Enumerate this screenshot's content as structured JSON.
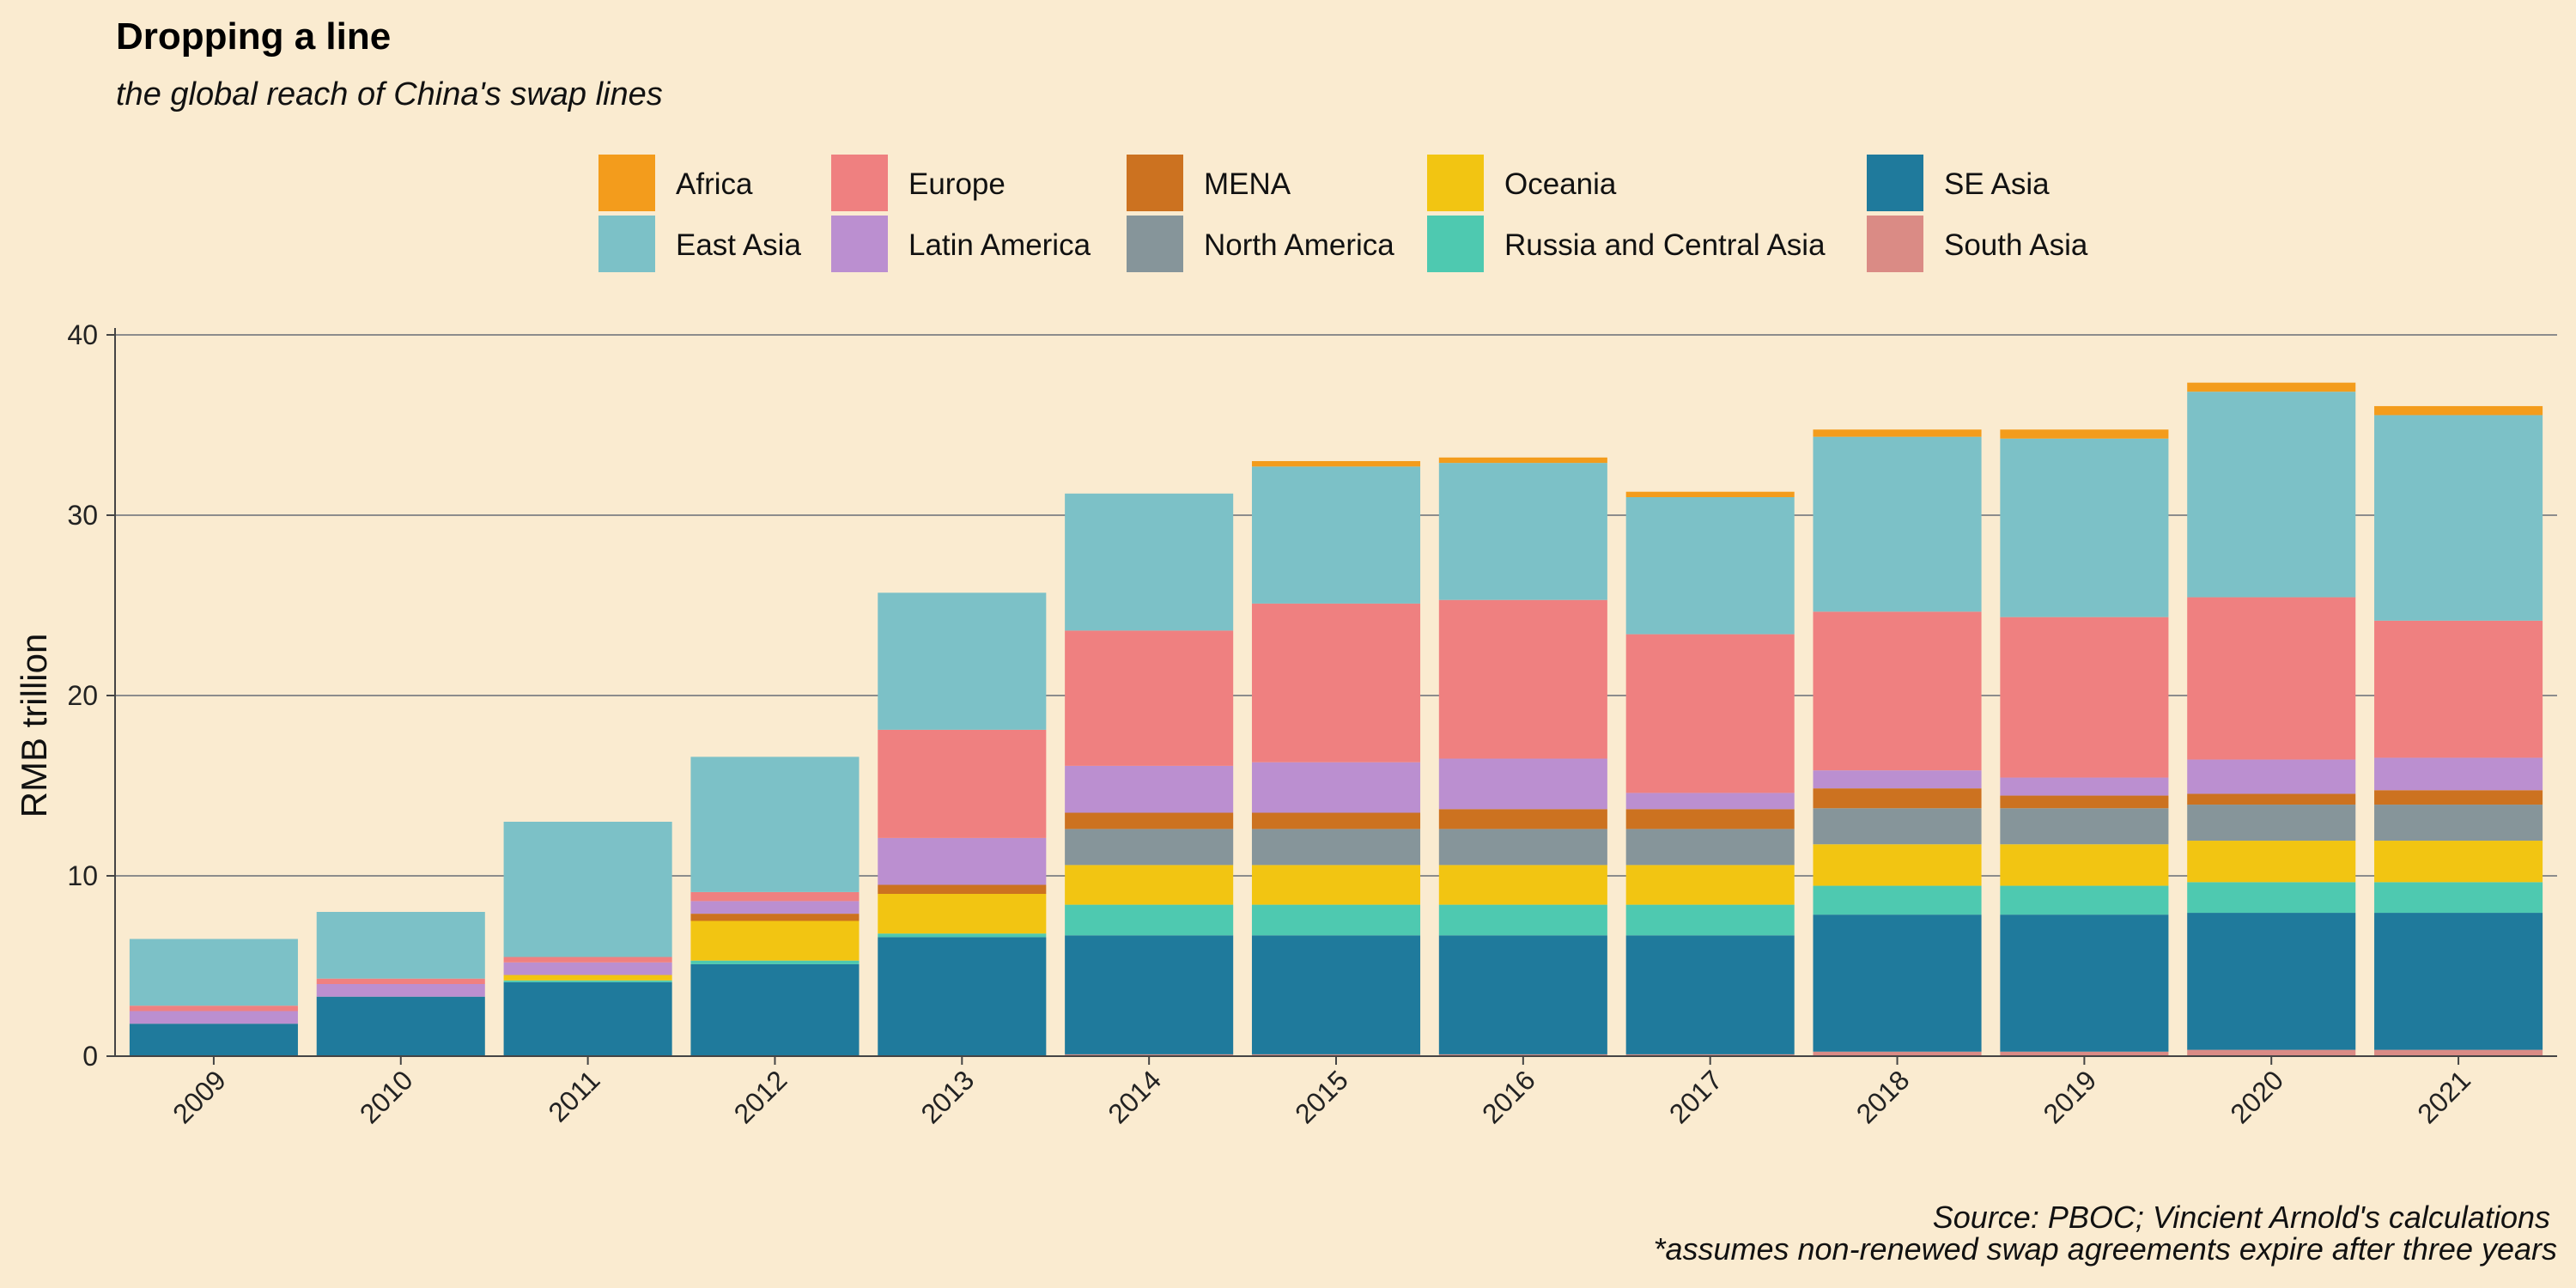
{
  "chart_data": {
    "type": "bar",
    "stacked": true,
    "title": "Dropping a line",
    "subtitle": "the global reach of China's swap lines",
    "xlabel": "",
    "ylabel": "RMB trillion",
    "ylim": [
      0,
      40
    ],
    "yticks": [
      "0",
      "10",
      "20",
      "30",
      "40"
    ],
    "grid": "horizontal",
    "legend_position": "top",
    "categories": [
      "2009",
      "2010",
      "2011",
      "2012",
      "2013",
      "2014",
      "2015",
      "2016",
      "2017",
      "2018",
      "2019",
      "2020",
      "2021"
    ],
    "series": [
      {
        "name": "South Asia",
        "color": "#DA8B85",
        "values": [
          0,
          0,
          0,
          0,
          0,
          0.1,
          0.1,
          0.1,
          0.1,
          0.25,
          0.25,
          0.35,
          0.35
        ]
      },
      {
        "name": "SE Asia",
        "color": "#1F7A9C",
        "values": [
          1.8,
          3.3,
          4.1,
          5.1,
          6.6,
          6.6,
          6.6,
          6.6,
          6.6,
          7.6,
          7.6,
          7.6,
          7.6
        ]
      },
      {
        "name": "Russia and Central Asia",
        "color": "#4EC9B0",
        "values": [
          0,
          0,
          0.1,
          0.2,
          0.2,
          1.7,
          1.7,
          1.7,
          1.7,
          1.6,
          1.6,
          1.7,
          1.7
        ]
      },
      {
        "name": "Oceania",
        "color": "#F2C512",
        "values": [
          0,
          0,
          0.3,
          2.2,
          2.2,
          2.2,
          2.2,
          2.2,
          2.2,
          2.3,
          2.3,
          2.3,
          2.3
        ]
      },
      {
        "name": "North America",
        "color": "#86959A",
        "values": [
          0,
          0,
          0,
          0,
          0,
          2.0,
          2.0,
          2.0,
          2.0,
          2.0,
          2.0,
          2.0,
          2.0
        ]
      },
      {
        "name": "MENA",
        "color": "#CC7220",
        "values": [
          0,
          0,
          0,
          0.4,
          0.5,
          0.9,
          0.9,
          1.1,
          1.1,
          1.1,
          0.7,
          0.6,
          0.8
        ]
      },
      {
        "name": "Latin America",
        "color": "#BB8FD0",
        "values": [
          0.7,
          0.7,
          0.7,
          0.7,
          2.6,
          2.6,
          2.8,
          2.8,
          0.9,
          1.0,
          1.0,
          1.9,
          1.8
        ]
      },
      {
        "name": "Europe",
        "color": "#EF8080",
        "values": [
          0.3,
          0.3,
          0.3,
          0.5,
          6.0,
          7.5,
          8.8,
          8.8,
          8.8,
          8.8,
          8.9,
          9.0,
          7.6
        ]
      },
      {
        "name": "East Asia",
        "color": "#7CC1C7",
        "values": [
          3.7,
          3.7,
          7.5,
          7.5,
          7.6,
          7.6,
          7.6,
          7.6,
          7.6,
          9.7,
          9.9,
          11.4,
          11.4
        ]
      },
      {
        "name": "Africa",
        "color": "#F39C1C",
        "values": [
          0,
          0,
          0,
          0,
          0,
          0,
          0.3,
          0.3,
          0.3,
          0.4,
          0.5,
          0.5,
          0.5
        ]
      }
    ],
    "caption_lines": [
      "Source: PBOC; Vincient Arnold's calculations",
      "*assumes non-renewed swap agreements expire after three years"
    ]
  },
  "legend": [
    {
      "name": "Africa",
      "color": "#F39C1C"
    },
    {
      "name": "East Asia",
      "color": "#7CC1C7"
    },
    {
      "name": "Europe",
      "color": "#EF8080"
    },
    {
      "name": "Latin America",
      "color": "#BB8FD0"
    },
    {
      "name": "MENA",
      "color": "#CC7220"
    },
    {
      "name": "North America",
      "color": "#86959A"
    },
    {
      "name": "Oceania",
      "color": "#F2C512"
    },
    {
      "name": "Russia and Central Asia",
      "color": "#4EC9B0"
    },
    {
      "name": "SE Asia",
      "color": "#1F7A9C"
    },
    {
      "name": "South Asia",
      "color": "#DA8B85"
    }
  ],
  "colors": {
    "background": "#FAEBD0",
    "grid": "#8C8C8C"
  }
}
